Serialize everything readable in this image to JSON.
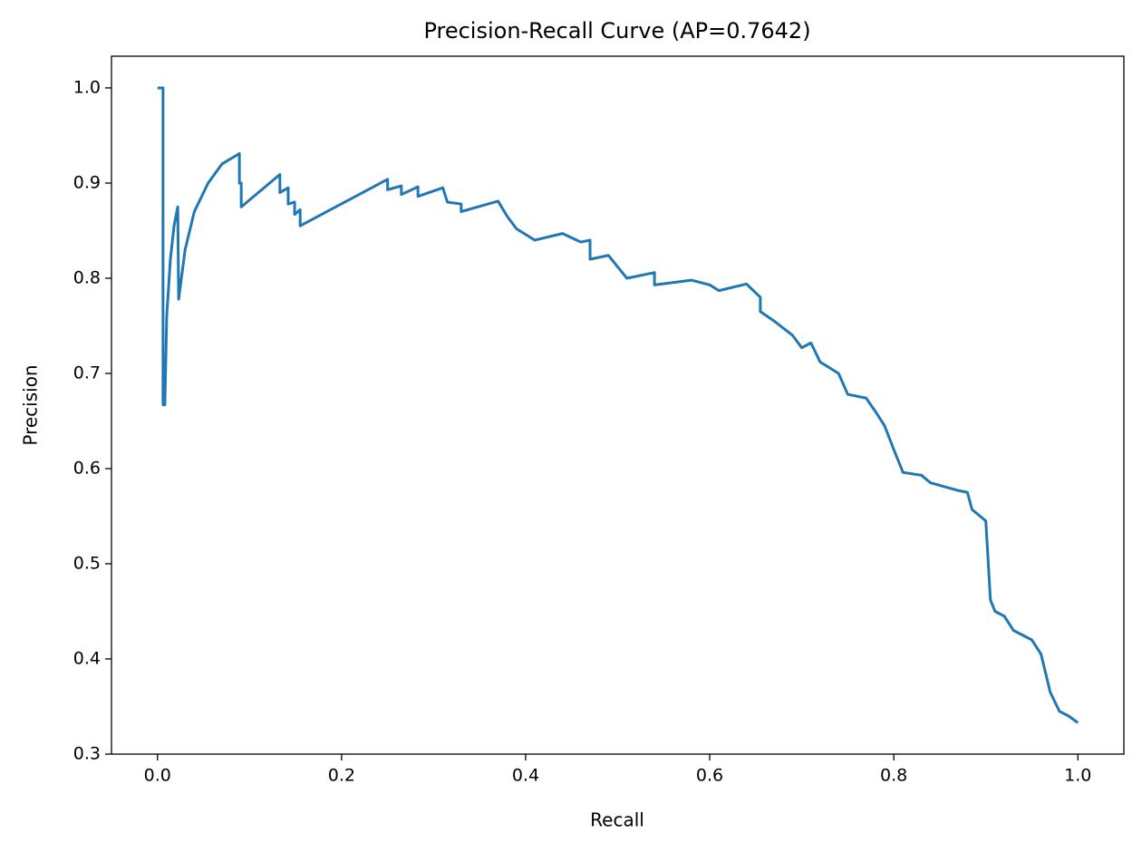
{
  "chart_data": {
    "type": "line",
    "title": "Precision-Recall Curve (AP=0.7642)",
    "x_label": "Recall",
    "y_label": "Precision",
    "xlim": [
      -0.05,
      1.05
    ],
    "ylim": [
      0.3,
      1.0333
    ],
    "xticks": [
      {
        "value": 0,
        "label": "0.0"
      },
      0.2,
      0.4,
      0.6,
      0.8,
      {
        "value": 1,
        "label": "1.0"
      }
    ],
    "yticks": [
      0.3,
      0.4,
      0.5,
      0.6,
      0.7,
      0.8,
      0.9,
      {
        "value": 1,
        "label": "1.0"
      }
    ],
    "grid": false,
    "series": [
      {
        "color": "#1f77b4",
        "x": [
          0,
          0.006,
          0.006,
          0.008,
          0.01,
          0.014,
          0.018,
          0.022,
          0.023,
          0.03,
          0.04,
          0.055,
          0.07,
          0.089,
          0.089,
          0.091,
          0.091,
          0.133,
          0.133,
          0.142,
          0.142,
          0.149,
          0.149,
          0.155,
          0.155,
          0.25,
          0.25,
          0.265,
          0.265,
          0.283,
          0.283,
          0.31,
          0.315,
          0.33,
          0.33,
          0.37,
          0.38,
          0.39,
          0.41,
          0.44,
          0.46,
          0.47,
          0.47,
          0.49,
          0.5,
          0.51,
          0.54,
          0.54,
          0.58,
          0.6,
          0.61,
          0.64,
          0.655,
          0.655,
          0.67,
          0.69,
          0.7,
          0.71,
          0.72,
          0.74,
          0.75,
          0.77,
          0.78,
          0.79,
          0.8,
          0.81,
          0.83,
          0.84,
          0.87,
          0.88,
          0.885,
          0.9,
          0.905,
          0.91,
          0.92,
          0.93,
          0.95,
          0.96,
          0.965,
          0.97,
          0.98,
          0.99,
          1.0
        ],
        "values": [
          1.0,
          1.0,
          0.667,
          0.667,
          0.76,
          0.82,
          0.855,
          0.875,
          0.778,
          0.83,
          0.87,
          0.9,
          0.92,
          0.931,
          0.9,
          0.9,
          0.875,
          0.909,
          0.89,
          0.895,
          0.878,
          0.88,
          0.867,
          0.872,
          0.855,
          0.904,
          0.893,
          0.897,
          0.888,
          0.896,
          0.886,
          0.895,
          0.88,
          0.878,
          0.87,
          0.881,
          0.865,
          0.852,
          0.84,
          0.847,
          0.838,
          0.84,
          0.82,
          0.824,
          0.812,
          0.8,
          0.806,
          0.793,
          0.798,
          0.793,
          0.787,
          0.794,
          0.78,
          0.765,
          0.755,
          0.74,
          0.727,
          0.732,
          0.712,
          0.7,
          0.678,
          0.674,
          0.66,
          0.645,
          0.62,
          0.596,
          0.593,
          0.585,
          0.577,
          0.575,
          0.557,
          0.545,
          0.462,
          0.45,
          0.445,
          0.43,
          0.42,
          0.405,
          0.385,
          0.365,
          0.345,
          0.34,
          0.333
        ]
      }
    ]
  }
}
